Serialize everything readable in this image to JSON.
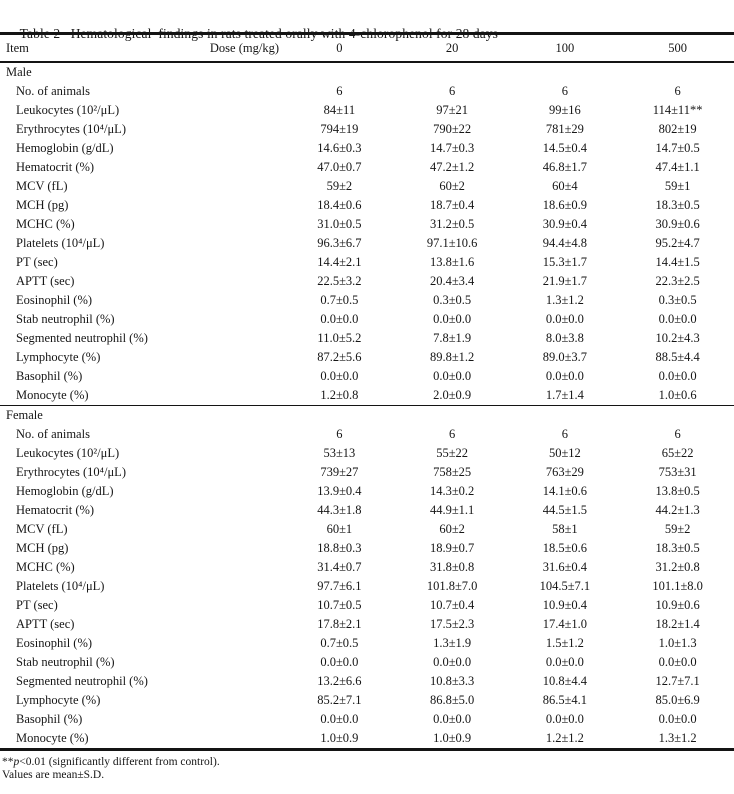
{
  "title": "Table 2   Hematological  findings in rats treated orally with 4-chlorophenol for 28 days",
  "header": {
    "item_label": "Item",
    "dose_label": "Dose (mg/kg)",
    "dose_levels": [
      "0",
      "20",
      "100",
      "500"
    ]
  },
  "sections": [
    {
      "name": "Male",
      "rows": [
        {
          "label": "No. of animals",
          "values": [
            "6",
            "6",
            "6",
            "6"
          ]
        },
        {
          "label": "Leukocytes (10²/μL)",
          "values": [
            "84±11",
            "97±21",
            "99±16",
            "114±11**"
          ]
        },
        {
          "label": "Erythrocytes (10⁴/μL)",
          "values": [
            "794±19",
            "790±22",
            "781±29",
            "802±19"
          ]
        },
        {
          "label": "Hemoglobin (g/dL)",
          "values": [
            "14.6±0.3",
            "14.7±0.3",
            "14.5±0.4",
            "14.7±0.5"
          ]
        },
        {
          "label": "Hematocrit (%)",
          "values": [
            "47.0±0.7",
            "47.2±1.2",
            "46.8±1.7",
            "47.4±1.1"
          ]
        },
        {
          "label": "MCV (fL)",
          "values": [
            "59±2",
            "60±2",
            "60±4",
            "59±1"
          ]
        },
        {
          "label": "MCH (pg)",
          "values": [
            "18.4±0.6",
            "18.7±0.4",
            "18.6±0.9",
            "18.3±0.5"
          ]
        },
        {
          "label": "MCHC (%)",
          "values": [
            "31.0±0.5",
            "31.2±0.5",
            "30.9±0.4",
            "30.9±0.6"
          ]
        },
        {
          "label": "Platelets (10⁴/μL)",
          "values": [
            "96.3±6.7",
            "97.1±10.6",
            "94.4±4.8",
            "95.2±4.7"
          ]
        },
        {
          "label": "PT (sec)",
          "values": [
            "14.4±2.1",
            "13.8±1.6",
            "15.3±1.7",
            "14.4±1.5"
          ]
        },
        {
          "label": "APTT (sec)",
          "values": [
            "22.5±3.2",
            "20.4±3.4",
            "21.9±1.7",
            "22.3±2.5"
          ]
        },
        {
          "label": "Eosinophil (%)",
          "values": [
            "0.7±0.5",
            "0.3±0.5",
            "1.3±1.2",
            "0.3±0.5"
          ]
        },
        {
          "label": "Stab neutrophil (%)",
          "values": [
            "0.0±0.0",
            "0.0±0.0",
            "0.0±0.0",
            "0.0±0.0"
          ]
        },
        {
          "label": "Segmented neutrophil (%)",
          "values": [
            "11.0±5.2",
            "7.8±1.9",
            "8.0±3.8",
            "10.2±4.3"
          ]
        },
        {
          "label": "Lymphocyte (%)",
          "values": [
            "87.2±5.6",
            "89.8±1.2",
            "89.0±3.7",
            "88.5±4.4"
          ]
        },
        {
          "label": "Basophil (%)",
          "values": [
            "0.0±0.0",
            "0.0±0.0",
            "0.0±0.0",
            "0.0±0.0"
          ]
        },
        {
          "label": "Monocyte (%)",
          "values": [
            "1.2±0.8",
            "2.0±0.9",
            "1.7±1.4",
            "1.0±0.6"
          ]
        }
      ]
    },
    {
      "name": "Female",
      "rows": [
        {
          "label": "No. of animals",
          "values": [
            "6",
            "6",
            "6",
            "6"
          ]
        },
        {
          "label": "Leukocytes (10²/μL)",
          "values": [
            "53±13",
            "55±22",
            "50±12",
            "65±22"
          ]
        },
        {
          "label": "Erythrocytes (10⁴/μL)",
          "values": [
            "739±27",
            "758±25",
            "763±29",
            "753±31"
          ]
        },
        {
          "label": "Hemoglobin (g/dL)",
          "values": [
            "13.9±0.4",
            "14.3±0.2",
            "14.1±0.6",
            "13.8±0.5"
          ]
        },
        {
          "label": "Hematocrit (%)",
          "values": [
            "44.3±1.8",
            "44.9±1.1",
            "44.5±1.5",
            "44.2±1.3"
          ]
        },
        {
          "label": "MCV (fL)",
          "values": [
            "60±1",
            "60±2",
            "58±1",
            "59±2"
          ]
        },
        {
          "label": "MCH (pg)",
          "values": [
            "18.8±0.3",
            "18.9±0.7",
            "18.5±0.6",
            "18.3±0.5"
          ]
        },
        {
          "label": "MCHC (%)",
          "values": [
            "31.4±0.7",
            "31.8±0.8",
            "31.6±0.4",
            "31.2±0.8"
          ]
        },
        {
          "label": "Platelets (10⁴/μL)",
          "values": [
            "97.7±6.1",
            "101.8±7.0",
            "104.5±7.1",
            "101.1±8.0"
          ]
        },
        {
          "label": "PT (sec)",
          "values": [
            "10.7±0.5",
            "10.7±0.4",
            "10.9±0.4",
            "10.9±0.6"
          ]
        },
        {
          "label": "APTT (sec)",
          "values": [
            "17.8±2.1",
            "17.5±2.3",
            "17.4±1.0",
            "18.2±1.4"
          ]
        },
        {
          "label": "Eosinophil (%)",
          "values": [
            "0.7±0.5",
            "1.3±1.9",
            "1.5±1.2",
            "1.0±1.3"
          ]
        },
        {
          "label": "Stab neutrophil (%)",
          "values": [
            "0.0±0.0",
            "0.0±0.0",
            "0.0±0.0",
            "0.0±0.0"
          ]
        },
        {
          "label": "Segmented neutrophil (%)",
          "values": [
            "13.2±6.6",
            "10.8±3.3",
            "10.8±4.4",
            "12.7±7.1"
          ]
        },
        {
          "label": "Lymphocyte (%)",
          "values": [
            "85.2±7.1",
            "86.8±5.0",
            "86.5±4.1",
            "85.0±6.9"
          ]
        },
        {
          "label": "Basophil (%)",
          "values": [
            "0.0±0.0",
            "0.0±0.0",
            "0.0±0.0",
            "0.0±0.0"
          ]
        },
        {
          "label": "Monocyte (%)",
          "values": [
            "1.0±0.9",
            "1.0±0.9",
            "1.2±1.2",
            "1.3±1.2"
          ]
        }
      ]
    }
  ],
  "footnotes": {
    "significance_stars": "**",
    "significance_var": "p",
    "significance_rest": "<0.01 (significantly different from control).",
    "values_note": "Values are mean±S.D."
  }
}
